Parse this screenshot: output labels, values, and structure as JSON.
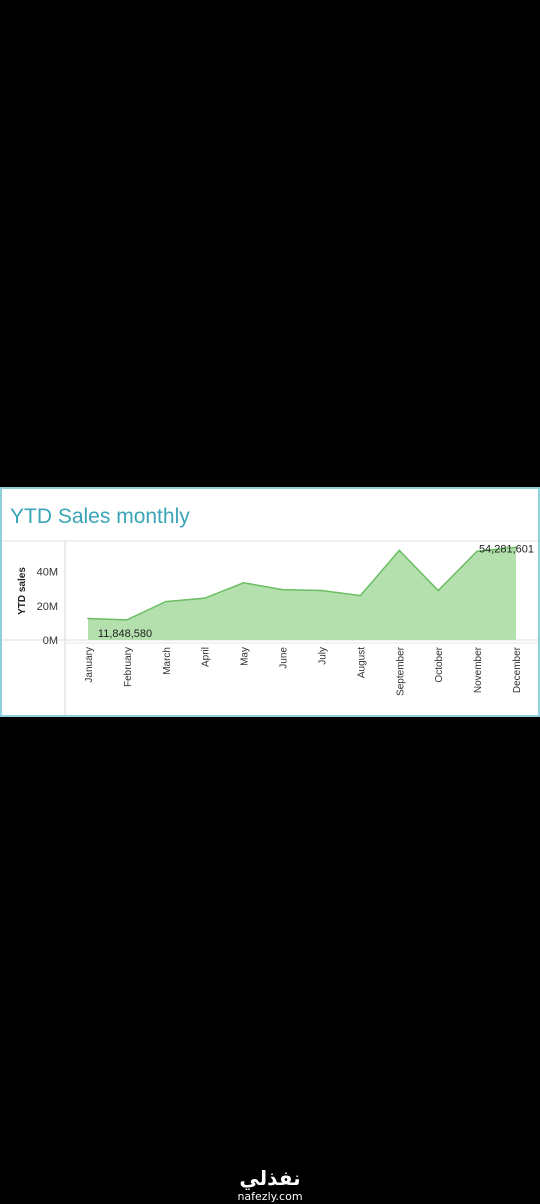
{
  "panel": {
    "title": "YTD Sales monthly"
  },
  "chart_data": {
    "type": "area",
    "title": "YTD Sales monthly",
    "xlabel": "",
    "ylabel": "YTD sales",
    "categories": [
      "January",
      "February",
      "March",
      "April",
      "May",
      "June",
      "July",
      "August",
      "September",
      "October",
      "November",
      "December"
    ],
    "values": [
      12.6,
      11.8,
      22.5,
      24.5,
      33.5,
      29.5,
      29,
      26,
      52.5,
      29,
      52,
      54.3
    ],
    "ylim": [
      0,
      58
    ],
    "yticks": [
      0,
      20,
      40
    ],
    "ytick_labels": [
      "0M",
      "20M",
      "40M"
    ],
    "annotations": [
      {
        "category": "February",
        "text": "11,848,580"
      },
      {
        "category": "December",
        "text": "54,281,601"
      }
    ],
    "fill_color": "#b3e0ad",
    "line_color": "#6bbf62",
    "grid": false
  },
  "watermark": {
    "logo": "نفذلي",
    "url": "nafezly.com"
  }
}
